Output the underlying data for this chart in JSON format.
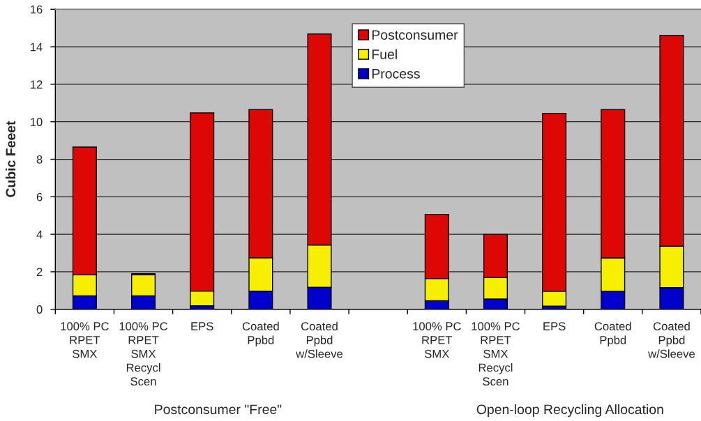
{
  "chart_data": {
    "type": "bar",
    "stacked": true,
    "ylabel": "Cubic Feeet",
    "categories": [
      "100% PC\nRPET\nSMX",
      "100% PC\nRPET\nSMX\nRecycl\nScen",
      "EPS",
      "Coated\nPpbd",
      "Coated\nPpbd\nw/Sleeve",
      null,
      "100% PC\nRPET\nSMX",
      "100% PC\nRPET\nSMX\nRecycl\nScen",
      "EPS",
      "Coated\nPpbd",
      "Coated\nPpbd\nw/Sleeve"
    ],
    "series": [
      {
        "name": "Process",
        "color": "#0000cc",
        "values": [
          0.72,
          0.72,
          0.19,
          0.97,
          1.17,
          null,
          0.46,
          0.55,
          0.17,
          0.96,
          1.15
        ]
      },
      {
        "name": "Fuel",
        "color": "#f6f000",
        "values": [
          1.12,
          1.12,
          0.78,
          1.78,
          2.26,
          null,
          1.18,
          1.14,
          0.79,
          1.78,
          2.21
        ]
      },
      {
        "name": "Postconsumer",
        "color": "#dd0806",
        "values": [
          6.81,
          0.06,
          9.5,
          7.9,
          11.25,
          null,
          3.42,
          2.3,
          9.49,
          7.91,
          11.25
        ]
      }
    ],
    "ylim": [
      0,
      16
    ],
    "yticks": [
      0,
      2,
      4,
      6,
      8,
      10,
      12,
      14,
      16
    ],
    "grid": "y",
    "legend": "top",
    "annotations": [
      "Postconsumer \"Free\"",
      "Open-loop Recycling Allocation"
    ]
  }
}
